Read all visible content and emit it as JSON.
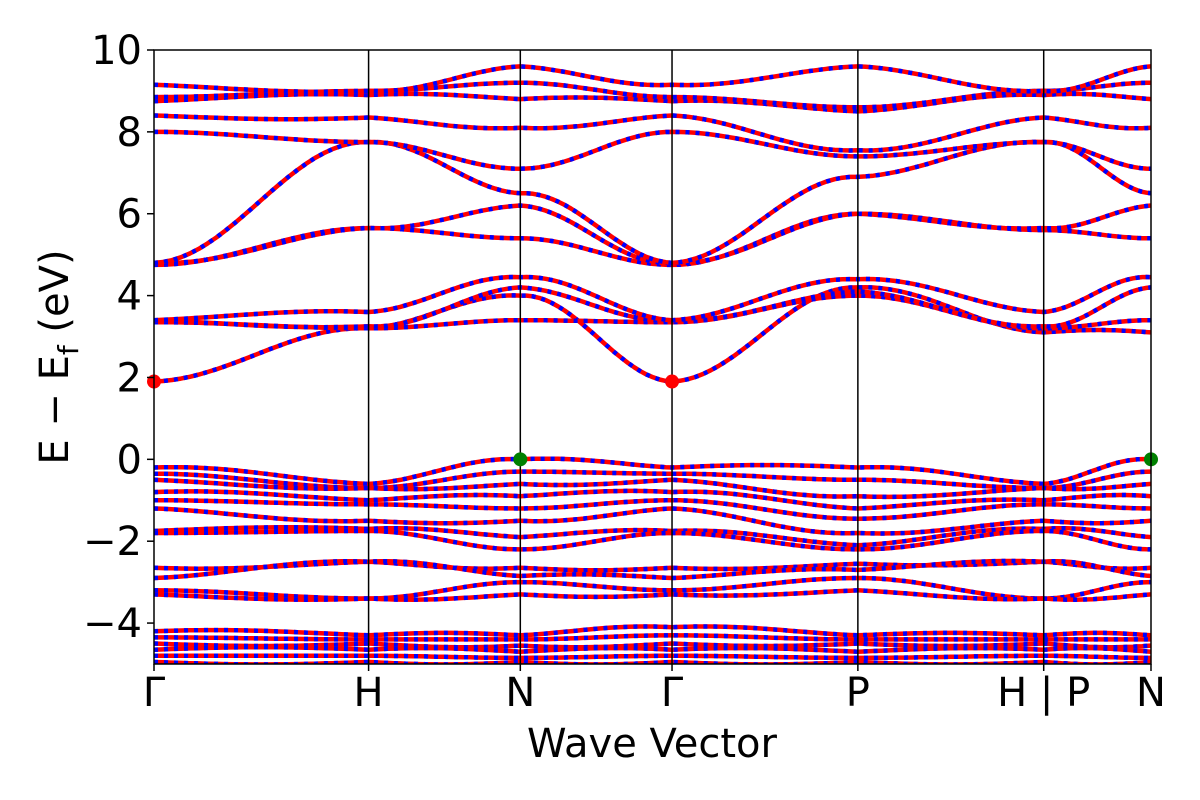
{
  "chart_data": {
    "type": "line",
    "title": "",
    "xlabel": "Wave Vector",
    "ylabel": "E − E",
    "ylabel_subscript": "f",
    "ylabel_unit": " (eV)",
    "ylim": [
      -5,
      10
    ],
    "yticks": [
      -4,
      -2,
      0,
      2,
      4,
      6,
      8,
      10
    ],
    "ytick_labels": [
      "−4",
      "−2",
      "0",
      "2",
      "4",
      "6",
      "8",
      "10"
    ],
    "k_path": [
      {
        "label": "Γ",
        "k": 0.0
      },
      {
        "label": "H",
        "k": 1.0
      },
      {
        "label": "N",
        "k": 1.707
      },
      {
        "label": "Γ",
        "k": 2.414
      },
      {
        "label": "P",
        "k": 3.28
      },
      {
        "label": "H | P",
        "k": 4.146
      },
      {
        "label": "N",
        "k": 4.646
      }
    ],
    "xlim": [
      0,
      4.646
    ],
    "legend": "none",
    "grid": false,
    "colors": {
      "band_spin_up": "#ff0000",
      "band_spin_down": "#0000ff",
      "cbm_marker": "#ff0000",
      "vbm_marker": "#008000",
      "kpath_line": "#000000"
    },
    "markers": [
      {
        "name": "CBM",
        "k": 0.0,
        "energy": 1.9
      },
      {
        "name": "CBM",
        "k": 2.414,
        "energy": 1.9
      },
      {
        "name": "VBM",
        "k": 1.707,
        "energy": 0.0
      },
      {
        "name": "VBM",
        "k": 4.646,
        "energy": 0.0
      }
    ],
    "series": [
      {
        "energies_at_high_symmetry_points": [
          1.9,
          3.2,
          4.0,
          1.9,
          4.2,
          3.1,
          3.1
        ]
      },
      {
        "energies_at_high_symmetry_points": [
          3.35,
          3.2,
          3.4,
          3.35,
          4.0,
          3.2,
          3.4
        ]
      },
      {
        "energies_at_high_symmetry_points": [
          3.4,
          3.25,
          4.2,
          3.4,
          4.1,
          3.25,
          4.2
        ]
      },
      {
        "energies_at_high_symmetry_points": [
          3.4,
          3.6,
          4.45,
          3.4,
          4.4,
          3.6,
          4.45
        ]
      },
      {
        "energies_at_high_symmetry_points": [
          4.75,
          5.65,
          5.4,
          4.75,
          6.0,
          5.6,
          5.4
        ]
      },
      {
        "energies_at_high_symmetry_points": [
          4.8,
          5.65,
          6.2,
          4.8,
          6.0,
          5.65,
          6.2
        ]
      },
      {
        "energies_at_high_symmetry_points": [
          4.8,
          7.75,
          6.5,
          4.8,
          6.9,
          7.75,
          6.5
        ]
      },
      {
        "energies_at_high_symmetry_points": [
          8.0,
          7.75,
          7.1,
          8.0,
          7.4,
          7.75,
          7.1
        ]
      },
      {
        "energies_at_high_symmetry_points": [
          8.4,
          8.35,
          8.1,
          8.4,
          7.55,
          8.35,
          8.1
        ]
      },
      {
        "energies_at_high_symmetry_points": [
          8.75,
          8.9,
          8.8,
          8.75,
          8.5,
          8.9,
          8.8
        ]
      },
      {
        "energies_at_high_symmetry_points": [
          8.85,
          9.0,
          9.2,
          8.85,
          8.6,
          9.0,
          9.2
        ]
      },
      {
        "energies_at_high_symmetry_points": [
          9.15,
          9.0,
          9.6,
          9.15,
          9.6,
          9.0,
          9.6
        ]
      },
      {
        "energies_at_high_symmetry_points": [
          -0.2,
          -0.6,
          0.0,
          -0.2,
          -0.2,
          -0.6,
          0.0
        ]
      },
      {
        "energies_at_high_symmetry_points": [
          -0.35,
          -0.7,
          -0.3,
          -0.35,
          -0.5,
          -0.7,
          -0.3
        ]
      },
      {
        "energies_at_high_symmetry_points": [
          -0.5,
          -0.7,
          -0.6,
          -0.5,
          -0.9,
          -0.7,
          -0.6
        ]
      },
      {
        "energies_at_high_symmetry_points": [
          -0.8,
          -1.0,
          -0.9,
          -0.8,
          -1.2,
          -1.0,
          -0.9
        ]
      },
      {
        "energies_at_high_symmetry_points": [
          -1.0,
          -1.1,
          -1.2,
          -1.0,
          -1.45,
          -1.1,
          -1.2
        ]
      },
      {
        "energies_at_high_symmetry_points": [
          -1.2,
          -1.5,
          -1.5,
          -1.2,
          -1.8,
          -1.5,
          -1.5
        ]
      },
      {
        "energies_at_high_symmetry_points": [
          -1.75,
          -1.7,
          -1.9,
          -1.75,
          -2.1,
          -1.7,
          -1.9
        ]
      },
      {
        "energies_at_high_symmetry_points": [
          -1.8,
          -1.75,
          -2.2,
          -1.8,
          -2.2,
          -1.75,
          -2.2
        ]
      },
      {
        "energies_at_high_symmetry_points": [
          -2.65,
          -2.5,
          -2.65,
          -2.65,
          -2.55,
          -2.5,
          -2.65
        ]
      },
      {
        "energies_at_high_symmetry_points": [
          -2.9,
          -2.5,
          -2.85,
          -2.9,
          -2.7,
          -2.5,
          -2.85
        ]
      },
      {
        "energies_at_high_symmetry_points": [
          -3.2,
          -3.4,
          -3.0,
          -3.2,
          -2.9,
          -3.4,
          -3.0
        ]
      },
      {
        "energies_at_high_symmetry_points": [
          -3.3,
          -3.4,
          -3.3,
          -3.3,
          -3.2,
          -3.4,
          -3.3
        ]
      },
      {
        "energies_at_high_symmetry_points": [
          -4.2,
          -4.3,
          -4.3,
          -4.1,
          -4.3,
          -4.3,
          -4.3
        ]
      },
      {
        "energies_at_high_symmetry_points": [
          -4.35,
          -4.4,
          -4.4,
          -4.3,
          -4.4,
          -4.4,
          -4.4
        ]
      },
      {
        "energies_at_high_symmetry_points": [
          -4.5,
          -4.5,
          -4.55,
          -4.5,
          -4.5,
          -4.5,
          -4.55
        ]
      },
      {
        "energies_at_high_symmetry_points": [
          -4.65,
          -4.65,
          -4.7,
          -4.65,
          -4.7,
          -4.65,
          -4.7
        ]
      },
      {
        "energies_at_high_symmetry_points": [
          -4.8,
          -4.8,
          -4.85,
          -4.8,
          -4.85,
          -4.8,
          -4.85
        ]
      },
      {
        "energies_at_high_symmetry_points": [
          -4.95,
          -4.95,
          -4.95,
          -4.95,
          -4.95,
          -4.95,
          -4.95
        ]
      }
    ]
  }
}
